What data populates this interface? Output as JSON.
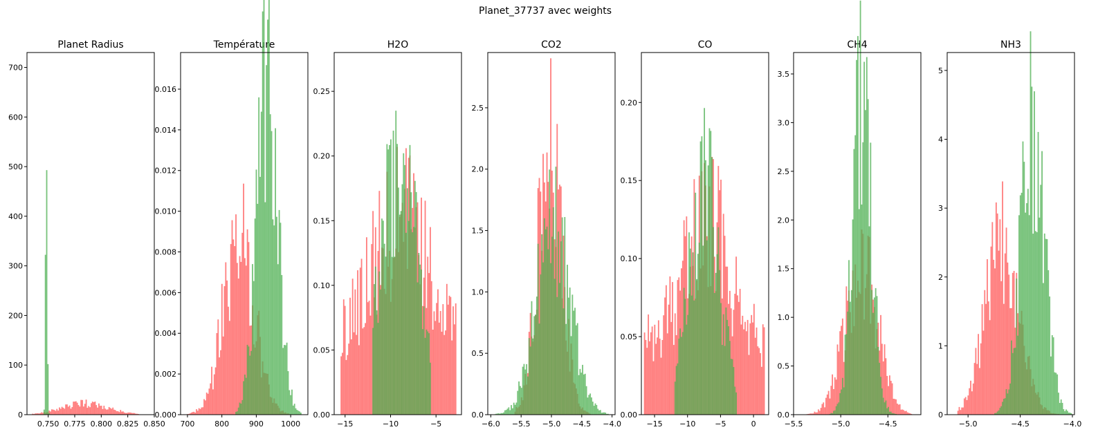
{
  "figure": {
    "suptitle": "Planet_37737 avec weights",
    "colors": {
      "series_a": "#ff5555",
      "series_b": "#4caf50",
      "overlap": "#7b7b33"
    },
    "alpha": 0.75
  },
  "chart_data": [
    {
      "type": "bar",
      "title": "Planet Radius",
      "xlim": [
        0.73,
        0.85
      ],
      "ylim": [
        0,
        730
      ],
      "xticks": [
        0.75,
        0.775,
        0.8,
        0.825,
        0.85
      ],
      "xtick_labels": [
        "0.750",
        "0.775",
        "0.800",
        "0.825",
        "0.850"
      ],
      "yticks": [
        0,
        100,
        200,
        300,
        400,
        500,
        600,
        700
      ],
      "ytick_labels": [
        "0",
        "100",
        "200",
        "300",
        "400",
        "500",
        "600",
        "700"
      ],
      "series": [
        {
          "color": "red",
          "shape": "normal",
          "center": 0.785,
          "spread": 0.022,
          "peak": 22,
          "range": [
            0.735,
            0.835
          ]
        },
        {
          "color": "green",
          "shape": "normal",
          "center": 0.7485,
          "spread": 0.0008,
          "peak": 612,
          "range": [
            0.746,
            0.751
          ]
        }
      ]
    },
    {
      "type": "bar",
      "title": "Température",
      "xlim": [
        680,
        1050
      ],
      "ylim": [
        0,
        0.0178
      ],
      "xticks": [
        700,
        800,
        900,
        1000
      ],
      "xtick_labels": [
        "700",
        "800",
        "900",
        "1000"
      ],
      "yticks": [
        0,
        0.002,
        0.004,
        0.006,
        0.008,
        0.01,
        0.012,
        0.014,
        0.016
      ],
      "ytick_labels": [
        "0.000",
        "0.002",
        "0.004",
        "0.006",
        "0.008",
        "0.010",
        "0.012",
        "0.014",
        "0.016"
      ],
      "series": [
        {
          "color": "red",
          "shape": "normal",
          "center": 850,
          "spread": 45,
          "peak": 0.0085,
          "range": [
            700,
            1000
          ]
        },
        {
          "color": "green",
          "shape": "normal",
          "center": 932,
          "spread": 30,
          "peak": 0.0169,
          "range": [
            840,
            1030
          ]
        }
      ]
    },
    {
      "type": "bar",
      "title": "H2O",
      "xlim": [
        -16.2,
        -2.2
      ],
      "ylim": [
        0,
        0.28
      ],
      "xticks": [
        -15,
        -10,
        -5
      ],
      "xtick_labels": [
        "−15",
        "−10",
        "−5"
      ],
      "yticks": [
        0,
        0.05,
        0.1,
        0.15,
        0.2,
        0.25
      ],
      "ytick_labels": [
        "0.00",
        "0.05",
        "0.10",
        "0.15",
        "0.20",
        "0.25"
      ],
      "series": [
        {
          "color": "red",
          "shape": "uniform",
          "center": -8.9,
          "spread": 3.1,
          "peak": 0.15,
          "range": [
            -15.5,
            -2.7
          ]
        },
        {
          "color": "green",
          "shape": "normal",
          "center": -9.0,
          "spread": 2.1,
          "peak": 0.19,
          "range": [
            -12,
            -5.5
          ]
        }
      ]
    },
    {
      "type": "bar",
      "title": "CO2",
      "xlim": [
        -6.05,
        -3.95
      ],
      "ylim": [
        0,
        2.95
      ],
      "xticks": [
        -6.0,
        -5.5,
        -5.0,
        -4.5,
        -4.0
      ],
      "xtick_labels": [
        "−6.0",
        "−5.5",
        "−5.0",
        "−4.5",
        "−4.0"
      ],
      "yticks": [
        0,
        0.5,
        1.0,
        1.5,
        2.0,
        2.5
      ],
      "ytick_labels": [
        "0.0",
        "0.5",
        "1.0",
        "1.5",
        "2.0",
        "2.5"
      ],
      "series": [
        {
          "color": "red",
          "shape": "normal",
          "center": -5.03,
          "spread": 0.2,
          "peak": 2.1,
          "range": [
            -5.6,
            -4.35
          ]
        },
        {
          "color": "green",
          "shape": "normal",
          "center": -4.97,
          "spread": 0.28,
          "peak": 1.5,
          "range": [
            -5.95,
            -4.05
          ]
        }
      ]
    },
    {
      "type": "bar",
      "title": "CO",
      "xlim": [
        -17,
        2.3
      ],
      "ylim": [
        0,
        0.232
      ],
      "xticks": [
        -15,
        -10,
        -5,
        0
      ],
      "xtick_labels": [
        "−15",
        "−10",
        "−5",
        "0"
      ],
      "yticks": [
        0,
        0.05,
        0.1,
        0.15,
        0.2
      ],
      "ytick_labels": [
        "0.00",
        "0.05",
        "0.10",
        "0.15",
        "0.20"
      ],
      "series": [
        {
          "color": "red",
          "shape": "uniform",
          "center": -7.3,
          "spread": 3.2,
          "peak": 0.13,
          "range": [
            -16.6,
            1.8
          ]
        },
        {
          "color": "green",
          "shape": "normal",
          "center": -7.5,
          "spread": 2.3,
          "peak": 0.15,
          "range": [
            -12,
            -2.5
          ]
        }
      ]
    },
    {
      "type": "bar",
      "title": "CH4",
      "xlim": [
        -5.5,
        -4.15
      ],
      "ylim": [
        0,
        3.72
      ],
      "xticks": [
        -5.5,
        -5.0,
        -4.5
      ],
      "xtick_labels": [
        "−5.5",
        "−5.0",
        "−4.5"
      ],
      "yticks": [
        0,
        0.5,
        1.0,
        1.5,
        2.0,
        2.5,
        3.0,
        3.5
      ],
      "ytick_labels": [
        "0.0",
        "0.5",
        "1.0",
        "1.5",
        "2.0",
        "2.5",
        "3.0",
        "3.5"
      ],
      "series": [
        {
          "color": "red",
          "shape": "normal",
          "center": -4.78,
          "spread": 0.17,
          "peak": 1.6,
          "range": [
            -5.45,
            -4.25
          ]
        },
        {
          "color": "green",
          "shape": "normal",
          "center": -4.77,
          "spread": 0.1,
          "peak": 3.2,
          "range": [
            -5.2,
            -4.4
          ]
        }
      ]
    },
    {
      "type": "bar",
      "title": "NH3",
      "xlim": [
        -5.2,
        -3.98
      ],
      "ylim": [
        0,
        5.26
      ],
      "xticks": [
        -5.0,
        -4.5,
        -4.0
      ],
      "xtick_labels": [
        "−5.0",
        "−4.5",
        "−4.0"
      ],
      "yticks": [
        0,
        1,
        2,
        3,
        4,
        5
      ],
      "ytick_labels": [
        "0",
        "1",
        "2",
        "3",
        "4",
        "5"
      ],
      "series": [
        {
          "color": "red",
          "shape": "normal",
          "center": -4.67,
          "spread": 0.16,
          "peak": 2.5,
          "range": [
            -5.1,
            -4.1
          ]
        },
        {
          "color": "green",
          "shape": "normal",
          "center": -4.38,
          "spread": 0.11,
          "peak": 4.3,
          "range": [
            -4.75,
            -4.0
          ]
        }
      ]
    }
  ]
}
